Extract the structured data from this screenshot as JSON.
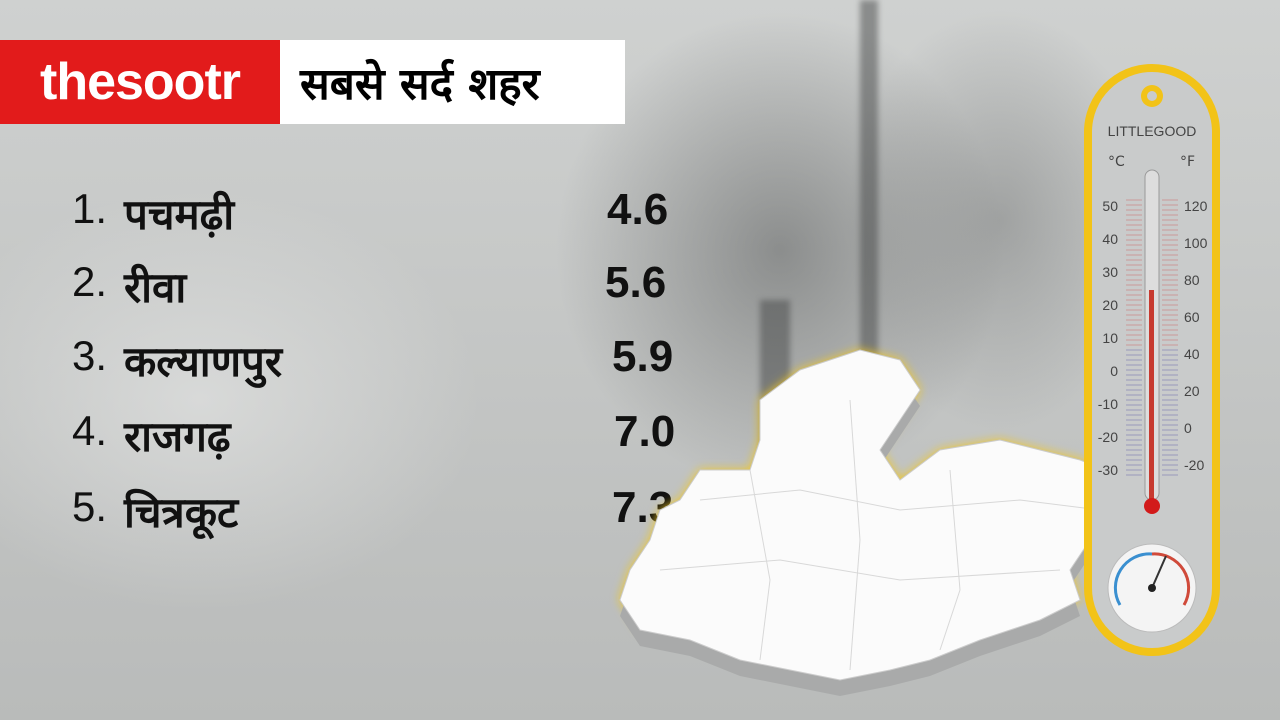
{
  "header": {
    "brand": "thesootr",
    "title": "सबसे सर्द शहर",
    "brand_color": "#e21b1b"
  },
  "list": [
    {
      "rank": "1.",
      "city": "पचमढ़ी",
      "temp": "4.6"
    },
    {
      "rank": "2.",
      "city": "रीवा",
      "temp": "5.6"
    },
    {
      "rank": "3.",
      "city": "कल्याणपुर",
      "temp": "5.9"
    },
    {
      "rank": "4.",
      "city": "राजगढ़",
      "temp": "7.0"
    },
    {
      "rank": "5.",
      "city": "चित्रकूट",
      "temp": "7.3"
    }
  ],
  "thermometer": {
    "brand": "LITTLEGOOD",
    "unit_c": "°C",
    "unit_f": "°F",
    "celsius_ticks": [
      "50",
      "40",
      "30",
      "20",
      "10",
      "0",
      "-10",
      "-20",
      "-30"
    ],
    "fahrenheit_ticks": [
      "120",
      "100",
      "80",
      "60",
      "40",
      "20",
      "0",
      "-20"
    ],
    "frame_color": "#f2c318"
  }
}
